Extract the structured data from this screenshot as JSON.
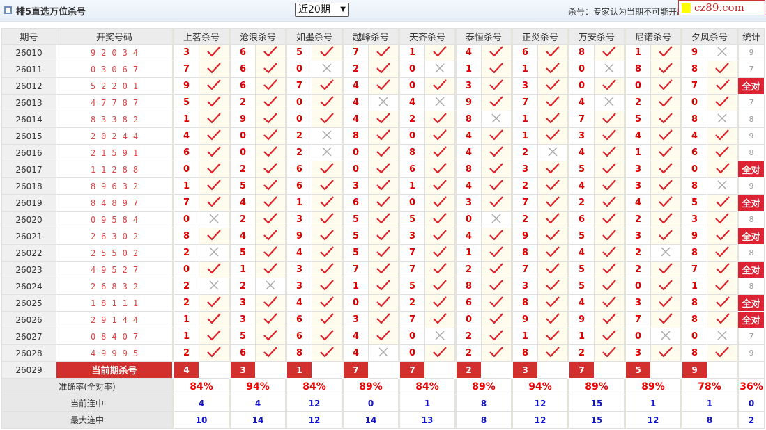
{
  "header": {
    "title": "排5直选万位杀号",
    "period_select": "近20期",
    "note": "杀号：专家认为当期不可能开出",
    "logo": "cz89.com"
  },
  "columns": {
    "issue": "期号",
    "draw": "开奖号码",
    "stat": "统计"
  },
  "experts": [
    "上茗杀号",
    "沧浪杀号",
    "如墨杀号",
    "越峰杀号",
    "天齐杀号",
    "泰恒杀号",
    "正炎杀号",
    "万安杀号",
    "尼诺杀号",
    "夕风杀号"
  ],
  "colors": {
    "accent": "#d2302f",
    "check": "#e0202a",
    "cross": "#aaaaaa",
    "blue": "#1111cc"
  },
  "rows": [
    {
      "issue": "26010",
      "draw": "92034",
      "kills": [
        "3",
        "6",
        "5",
        "7",
        "1",
        "4",
        "6",
        "8",
        "1",
        "9"
      ],
      "stat": "9"
    },
    {
      "issue": "26011",
      "draw": "03067",
      "kills": [
        "7",
        "6",
        "0",
        "2",
        "0",
        "1",
        "1",
        "0",
        "8",
        "8"
      ],
      "stat": "7"
    },
    {
      "issue": "26012",
      "draw": "52201",
      "kills": [
        "9",
        "6",
        "7",
        "4",
        "0",
        "3",
        "3",
        "0",
        "0",
        "7"
      ],
      "stat": "全对"
    },
    {
      "issue": "26013",
      "draw": "47787",
      "kills": [
        "5",
        "2",
        "0",
        "4",
        "4",
        "9",
        "7",
        "4",
        "2",
        "0"
      ],
      "stat": "7"
    },
    {
      "issue": "26014",
      "draw": "83382",
      "kills": [
        "1",
        "9",
        "0",
        "4",
        "2",
        "8",
        "1",
        "7",
        "5",
        "8"
      ],
      "stat": "8"
    },
    {
      "issue": "26015",
      "draw": "20244",
      "kills": [
        "4",
        "0",
        "2",
        "8",
        "0",
        "4",
        "1",
        "3",
        "4",
        "4"
      ],
      "stat": "9"
    },
    {
      "issue": "26016",
      "draw": "21591",
      "kills": [
        "6",
        "0",
        "2",
        "0",
        "8",
        "4",
        "2",
        "4",
        "1",
        "6"
      ],
      "stat": "8"
    },
    {
      "issue": "26017",
      "draw": "11288",
      "kills": [
        "0",
        "2",
        "6",
        "0",
        "6",
        "8",
        "3",
        "5",
        "3",
        "0"
      ],
      "stat": "全对"
    },
    {
      "issue": "26018",
      "draw": "89632",
      "kills": [
        "1",
        "5",
        "6",
        "3",
        "1",
        "4",
        "2",
        "4",
        "3",
        "8"
      ],
      "stat": "9"
    },
    {
      "issue": "26019",
      "draw": "84897",
      "kills": [
        "7",
        "4",
        "1",
        "6",
        "0",
        "3",
        "7",
        "2",
        "4",
        "5"
      ],
      "stat": "全对"
    },
    {
      "issue": "26020",
      "draw": "09584",
      "kills": [
        "0",
        "2",
        "3",
        "5",
        "5",
        "0",
        "2",
        "6",
        "2",
        "3"
      ],
      "stat": "8"
    },
    {
      "issue": "26021",
      "draw": "26302",
      "kills": [
        "8",
        "4",
        "9",
        "5",
        "3",
        "4",
        "9",
        "5",
        "3",
        "9"
      ],
      "stat": "全对"
    },
    {
      "issue": "26022",
      "draw": "25502",
      "kills": [
        "2",
        "5",
        "4",
        "5",
        "7",
        "1",
        "8",
        "4",
        "2",
        "8"
      ],
      "stat": "8"
    },
    {
      "issue": "26023",
      "draw": "49527",
      "kills": [
        "0",
        "1",
        "3",
        "7",
        "7",
        "2",
        "7",
        "5",
        "2",
        "7"
      ],
      "stat": "全对"
    },
    {
      "issue": "26024",
      "draw": "26832",
      "kills": [
        "2",
        "2",
        "3",
        "1",
        "5",
        "8",
        "3",
        "5",
        "0",
        "1"
      ],
      "stat": "8"
    },
    {
      "issue": "26025",
      "draw": "18111",
      "kills": [
        "2",
        "3",
        "4",
        "0",
        "2",
        "6",
        "8",
        "4",
        "3",
        "8"
      ],
      "stat": "全对"
    },
    {
      "issue": "26026",
      "draw": "29144",
      "kills": [
        "1",
        "3",
        "6",
        "3",
        "7",
        "0",
        "9",
        "9",
        "7",
        "8"
      ],
      "stat": "全对"
    },
    {
      "issue": "26027",
      "draw": "08407",
      "kills": [
        "1",
        "5",
        "6",
        "4",
        "0",
        "2",
        "1",
        "1",
        "0",
        "0"
      ],
      "stat": "7"
    },
    {
      "issue": "26028",
      "draw": "49995",
      "kills": [
        "2",
        "6",
        "8",
        "4",
        "0",
        "2",
        "8",
        "2",
        "3",
        "8"
      ],
      "stat": "9"
    }
  ],
  "current": {
    "issue": "26029",
    "label": "当前期杀号",
    "kills": [
      "4",
      "3",
      "1",
      "7",
      "7",
      "2",
      "3",
      "7",
      "5",
      "9"
    ]
  },
  "summary": [
    {
      "label": "准确率(全对率)",
      "values": [
        "84%",
        "94%",
        "84%",
        "89%",
        "84%",
        "89%",
        "94%",
        "89%",
        "89%",
        "78%"
      ],
      "stat": "36%"
    },
    {
      "label": "当前连中",
      "values": [
        "4",
        "4",
        "12",
        "0",
        "1",
        "8",
        "12",
        "15",
        "1",
        "1"
      ],
      "stat": "0"
    },
    {
      "label": "最大连中",
      "values": [
        "10",
        "14",
        "12",
        "14",
        "13",
        "8",
        "12",
        "15",
        "12",
        "8"
      ],
      "stat": "2"
    }
  ]
}
